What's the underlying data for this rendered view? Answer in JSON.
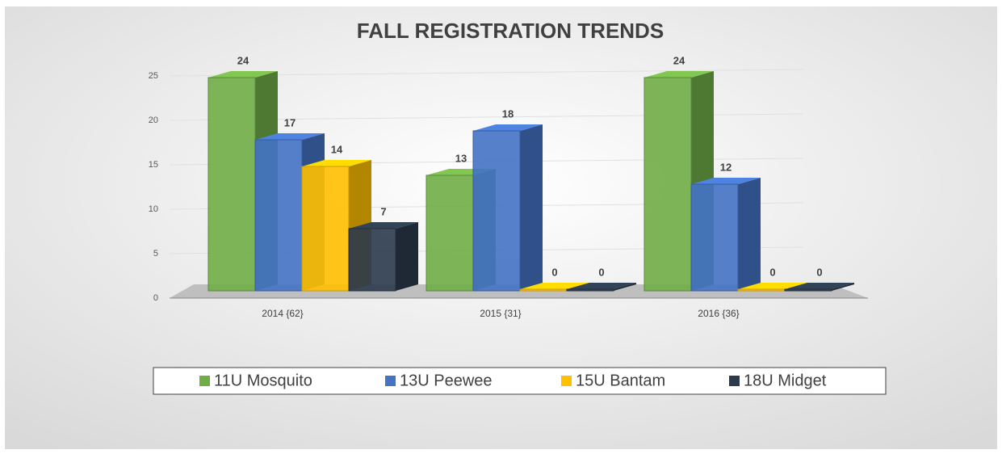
{
  "chart_data": {
    "type": "bar3d",
    "title": "FALL REGISTRATION TRENDS",
    "categories": [
      "2014 {62}",
      "2015 {31}",
      "2016 {36}"
    ],
    "series": [
      {
        "name": "11U Mosquito",
        "color": "#70ad47",
        "values": [
          24,
          13,
          24
        ]
      },
      {
        "name": "13U Peewee",
        "color": "#4472c4",
        "values": [
          17,
          18,
          12
        ]
      },
      {
        "name": "15U Bantam",
        "color": "#ffc000",
        "values": [
          14,
          0,
          0
        ]
      },
      {
        "name": "18U Midget",
        "color": "#2b3a4c",
        "values": [
          7,
          0,
          0
        ]
      }
    ],
    "ylim": [
      0,
      25
    ],
    "yticks": [
      0,
      5,
      10,
      15,
      20,
      25
    ],
    "grid": true,
    "legend": "bottom"
  }
}
